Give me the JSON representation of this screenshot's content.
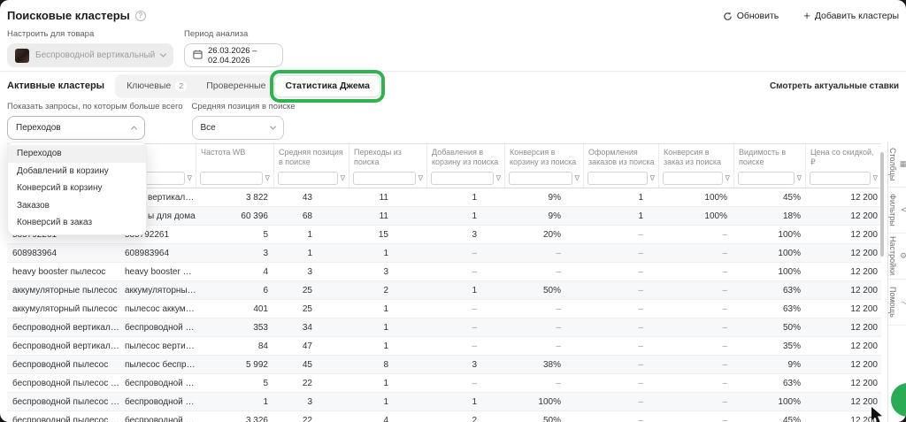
{
  "page": {
    "title": "Поисковые кластеры"
  },
  "header_actions": {
    "refresh": "Обновить",
    "add_clusters": "Добавить кластеры"
  },
  "product_filter": {
    "label": "Настроить для товара",
    "value": "Беспроводной вертикальный пылесос"
  },
  "period_filter": {
    "label": "Период анализа",
    "value": "26.03.2026 – 02.04.2026"
  },
  "tabs": {
    "active_label": "Активные кластеры",
    "items": [
      {
        "label": "Ключевые",
        "badge": "2",
        "selected": false,
        "highlighted": false
      },
      {
        "label": "Проверенные",
        "badge": "",
        "selected": false,
        "highlighted": false
      },
      {
        "label": "Статистика Джема",
        "badge": "",
        "selected": true,
        "highlighted": true
      }
    ]
  },
  "rates_link": "Смотреть актуальные ставки",
  "query_filter": {
    "label": "Показать запросы, по которым больше всего",
    "value": "Переходов",
    "options": [
      "Переходов",
      "Добавлений в корзину",
      "Конверсий в корзину",
      "Заказов",
      "Конверсий в заказ"
    ],
    "selected_index": 0
  },
  "position_filter": {
    "label": "Средняя позиция в поиске",
    "value": "Все"
  },
  "table": {
    "columns": [
      "",
      "",
      "Частота WB",
      "Средняя позиция в поиске",
      "Переходы из поиска",
      "Добавления в корзину из поиска",
      "Конверсия в корзину из поиска",
      "Оформления заказов из поиска",
      "Конверсия в заказ из поиска",
      "Видимость в поиске",
      "Цена со скидкой, ₽"
    ],
    "rows": [
      [
        "",
        "вертикальн…",
        "3 822",
        "43",
        "11",
        "1",
        "9%",
        "1",
        "100%",
        "45%",
        "12 200"
      ],
      [
        "",
        "ы для дома",
        "60 396",
        "68",
        "11",
        "1",
        "9%",
        "1",
        "100%",
        "18%",
        "12 200"
      ],
      [
        "585792261",
        "585792261",
        "5",
        "1",
        "15",
        "3",
        "20%",
        "–",
        "–",
        "100%",
        "12 200"
      ],
      [
        "608983964",
        "608983964",
        "3",
        "1",
        "1",
        "–",
        "–",
        "–",
        "–",
        "100%",
        "12 200"
      ],
      [
        "heavy booster пылесос",
        "heavy booster пылес…",
        "4",
        "3",
        "3",
        "–",
        "–",
        "–",
        "–",
        "100%",
        "12 200"
      ],
      [
        "аккумуляторные пылесос",
        "аккумуляторные пы…",
        "6",
        "25",
        "2",
        "1",
        "50%",
        "–",
        "–",
        "63%",
        "12 200"
      ],
      [
        "аккумуляторный пылесос",
        "пылесос аккумулято…",
        "401",
        "25",
        "1",
        "–",
        "–",
        "–",
        "–",
        "63%",
        "12 200"
      ],
      [
        "беспроводной вертикальный пы…",
        "беспроводной верти…",
        "353",
        "34",
        "1",
        "–",
        "–",
        "–",
        "–",
        "50%",
        "12 200"
      ],
      [
        "беспроводной вертикальный пы…",
        "пылесос вертикальн…",
        "84",
        "47",
        "1",
        "–",
        "–",
        "–",
        "–",
        "35%",
        "12 200"
      ],
      [
        "беспроводной пылесос",
        "пылесос беспровод…",
        "5 992",
        "45",
        "8",
        "3",
        "38%",
        "–",
        "–",
        "9%",
        "12 200"
      ],
      [
        "беспроводной пылесос 500 вт",
        "беспроводной пыле…",
        "5",
        "22",
        "1",
        "–",
        "–",
        "–",
        "–",
        "63%",
        "12 200"
      ],
      [
        "беспроводной пылесос heavy",
        "беспроводной пыле…",
        "1",
        "3",
        "1",
        "1",
        "100%",
        "–",
        "–",
        "100%",
        "12 200"
      ],
      [
        "беспроводной пылесос вертика…",
        "беспроводной верти…",
        "3 326",
        "22",
        "4",
        "2",
        "50%",
        "–",
        "–",
        "45%",
        "12 200"
      ]
    ]
  },
  "side_toolbar": [
    {
      "icon": "columns-icon",
      "glyph": "▦",
      "label": "Столбцы"
    },
    {
      "icon": "filter-icon",
      "glyph": "∇",
      "label": "Фильтры"
    },
    {
      "icon": "settings-icon",
      "glyph": "⚙",
      "label": "Настройки"
    },
    {
      "icon": "help-icon",
      "glyph": "?",
      "label": "Помощь"
    }
  ],
  "colors": {
    "annotation_green": "#2fb34f",
    "fab_green": "#2aab55"
  }
}
